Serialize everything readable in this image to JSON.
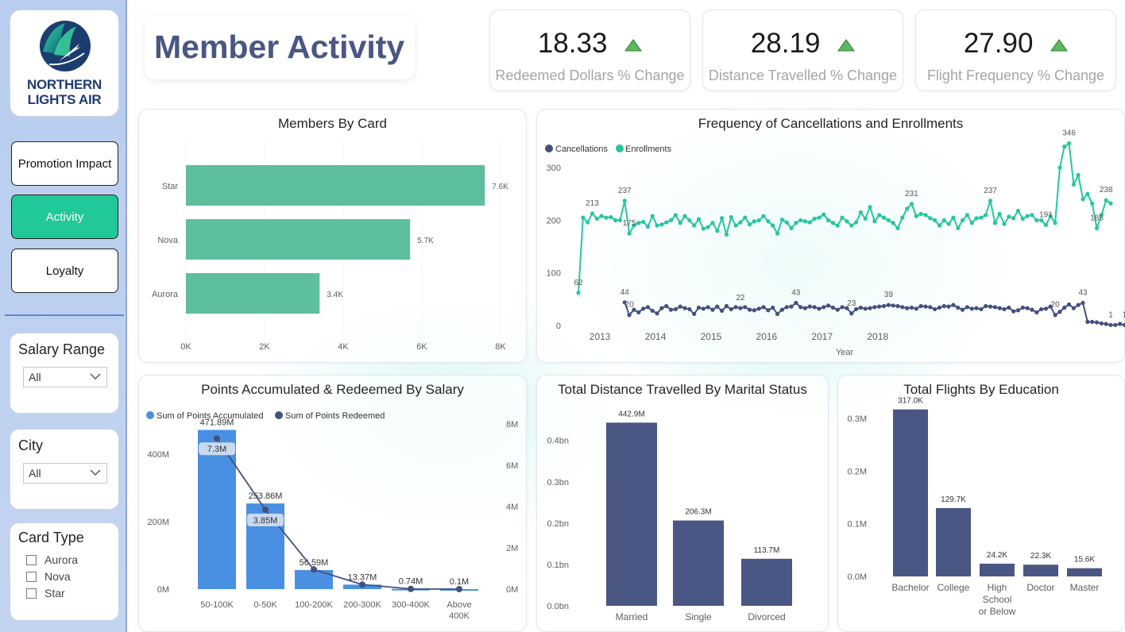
{
  "brand": {
    "line1": "NORTHERN",
    "line2": "LIGHTS AIR"
  },
  "page": {
    "title": "Member Activity"
  },
  "nav": {
    "promotion": "Promotion Impact",
    "activity": "Activity",
    "loyalty": "Loyalty"
  },
  "filters": {
    "salary": {
      "title": "Salary Range",
      "value": "All"
    },
    "city": {
      "title": "City",
      "value": "All"
    },
    "card_type": {
      "title": "Card Type",
      "options": [
        "Aurora",
        "Nova",
        "Star"
      ]
    }
  },
  "kpis": [
    {
      "value": "18.33",
      "label": "Redeemed Dollars % Change",
      "trend": "up"
    },
    {
      "value": "28.19",
      "label": "Distance Travelled % Change",
      "trend": "up"
    },
    {
      "value": "27.90",
      "label": "Flight Frequency % Change",
      "trend": "up"
    }
  ],
  "colors": {
    "accent": "#20c997",
    "green_bar": "#5dbf9b",
    "navy": "#4a5683",
    "blue": "#4a90e2",
    "enroll": "#26c6a0",
    "cancel": "#44507e"
  },
  "chart_data": [
    {
      "id": "members_by_card",
      "type": "bar",
      "title": "Members By Card",
      "orientation": "horizontal",
      "categories": [
        "Star",
        "Nova",
        "Aurora"
      ],
      "values": [
        7600,
        5700,
        3400
      ],
      "data_labels": [
        "7.6K",
        "5.7K",
        "3.4K"
      ],
      "xlim": [
        0,
        8000
      ],
      "xticks": [
        "0K",
        "2K",
        "4K",
        "6K",
        "8K"
      ]
    },
    {
      "id": "cancellations_enrollments",
      "type": "line",
      "title": "Frequency of Cancellations and Enrollments",
      "xlabel": "Year",
      "x_start": "2012-08",
      "ylim": [
        0,
        350
      ],
      "yticks": [
        "0",
        "100",
        "200",
        "300"
      ],
      "xticks": [
        "2013",
        "2014",
        "2015",
        "2016",
        "2017",
        "2018"
      ],
      "legend": "top-left",
      "series": [
        {
          "name": "Enrollments",
          "values": [
            62,
            205,
            196,
            213,
            203,
            208,
            205,
            206,
            200,
            200,
            237,
            175,
            190,
            195,
            197,
            188,
            208,
            190,
            192,
            196,
            200,
            210,
            195,
            208,
            200,
            190,
            202,
            184,
            187,
            195,
            180,
            204,
            173,
            206,
            190,
            196,
            205,
            192,
            198,
            200,
            208,
            198,
            190,
            175,
            201,
            196,
            185,
            195,
            200,
            198,
            196,
            203,
            205,
            211,
            200,
            195,
            190,
            205,
            198,
            190,
            196,
            215,
            203,
            225,
            198,
            210,
            205,
            200,
            195,
            185,
            205,
            222,
            231,
            208,
            212,
            210,
            204,
            200,
            190,
            200,
            193,
            205,
            185,
            200,
            210,
            195,
            204,
            205,
            210,
            237,
            195,
            212,
            193,
            207,
            204,
            218,
            203,
            208,
            210,
            200,
            200,
            191,
            208,
            195,
            300,
            340,
            346,
            268,
            286,
            240,
            250,
            232,
            185,
            210,
            238,
            232
          ],
          "labels": [
            {
              "i": 0,
              "t": "62"
            },
            {
              "i": 3,
              "t": "213"
            },
            {
              "i": 10,
              "t": "237"
            },
            {
              "i": 11,
              "t": "175"
            },
            {
              "i": 72,
              "t": "231"
            },
            {
              "i": 89,
              "t": "237"
            },
            {
              "i": 101,
              "t": "191"
            },
            {
              "i": 106,
              "t": "346"
            },
            {
              "i": 112,
              "t": "185"
            },
            {
              "i": 114,
              "t": "238"
            }
          ]
        },
        {
          "name": "Cancellations",
          "start_index": 10,
          "values": [
            44,
            20,
            30,
            25,
            32,
            35,
            28,
            23,
            33,
            37,
            30,
            31,
            36,
            33,
            31,
            22,
            34,
            32,
            35,
            30,
            36,
            28,
            37,
            31,
            35,
            33,
            35,
            30,
            29,
            32,
            35,
            29,
            34,
            22,
            30,
            35,
            36,
            43,
            35,
            33,
            36,
            35,
            32,
            35,
            38,
            34,
            30,
            35,
            33,
            23,
            31,
            34,
            32,
            33,
            35,
            36,
            37,
            39,
            38,
            37,
            35,
            33,
            34,
            32,
            37,
            36,
            35,
            31,
            34,
            37,
            36,
            39,
            34,
            30,
            35,
            32,
            33,
            31,
            37,
            36,
            35,
            33,
            31,
            34,
            27,
            29,
            34,
            33,
            30,
            25,
            31,
            32,
            36,
            20,
            26,
            34,
            40,
            33,
            39,
            43,
            7,
            7,
            6,
            4,
            3,
            1,
            1,
            3,
            1
          ],
          "labels": [
            {
              "i": 10,
              "t": "44"
            },
            {
              "i": 11,
              "t": "20"
            },
            {
              "i": 35,
              "t": "22"
            },
            {
              "i": 47,
              "t": "43"
            },
            {
              "i": 59,
              "t": "23"
            },
            {
              "i": 67,
              "t": "39"
            },
            {
              "i": 103,
              "t": "20"
            },
            {
              "i": 109,
              "t": "43"
            },
            {
              "i": 115,
              "t": "1"
            },
            {
              "i": 118,
              "t": "1"
            }
          ]
        }
      ]
    },
    {
      "id": "points_by_salary",
      "type": "bar",
      "title": "Points Accumulated & Redeemed By Salary",
      "categories": [
        "50-100K",
        "0-50K",
        "100-200K",
        "200-300K",
        "300-400K",
        "Above 400K"
      ],
      "legend": "top-left",
      "series": [
        {
          "name": "Sum of Points Accumulated",
          "values": [
            471.89,
            253.86,
            56.59,
            13.37,
            0.74,
            0.1
          ],
          "unit": "M",
          "data_labels": [
            "471.89M",
            "253.86M",
            "56.59M",
            "13.37M",
            "0.74M",
            "0.1M"
          ]
        },
        {
          "name": "Sum of Points Redeemed",
          "values": [
            7.3,
            3.85,
            0.95,
            0.22,
            0.01,
            0.0
          ],
          "unit": "M",
          "data_labels": [
            "7.3M",
            "3.85M",
            "",
            "",
            "",
            ""
          ]
        }
      ],
      "y_left": {
        "lim": [
          0,
          520
        ],
        "ticks": [
          "0M",
          "200M",
          "400M"
        ]
      },
      "y_right": {
        "lim": [
          0,
          8.5
        ],
        "ticks": [
          "0M",
          "2M",
          "4M",
          "6M",
          "8M"
        ]
      }
    },
    {
      "id": "distance_by_marital",
      "type": "bar",
      "title": "Total Distance Travelled By Marital Status",
      "categories": [
        "Married",
        "Single",
        "Divorced"
      ],
      "values": [
        442.9,
        206.3,
        113.7
      ],
      "data_labels": [
        "442.9M",
        "206.3M",
        "113.7M"
      ],
      "ylim": [
        0,
        0.48
      ],
      "yticks": [
        "0.0bn",
        "0.1bn",
        "0.2bn",
        "0.3bn",
        "0.4bn"
      ]
    },
    {
      "id": "flights_by_education",
      "type": "bar",
      "title": "Total Flights By Education",
      "categories": [
        "Bachelor",
        "College",
        "High School or Below",
        "Doctor",
        "Master"
      ],
      "values": [
        317.0,
        129.7,
        24.2,
        22.3,
        15.6
      ],
      "data_labels": [
        "317.0K",
        "129.7K",
        "24.2K",
        "22.3K",
        "15.6K"
      ],
      "ylim": [
        0,
        0.33
      ],
      "yticks": [
        "0.0M",
        "0.1M",
        "0.2M",
        "0.3M"
      ]
    }
  ]
}
